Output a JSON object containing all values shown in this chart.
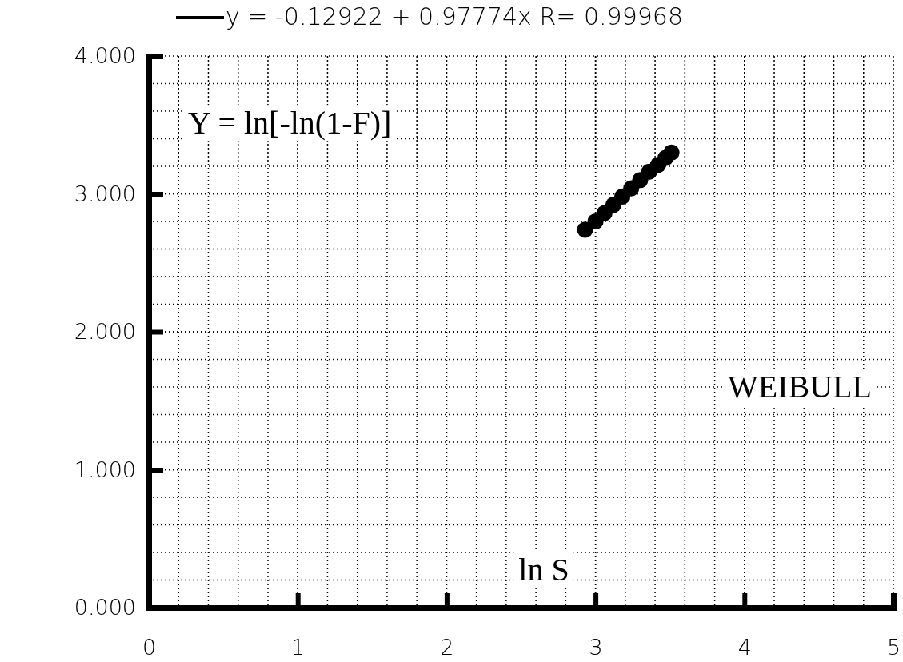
{
  "chart_data": {
    "type": "scatter",
    "xlabel": "ln S",
    "ylabel": "Y = ln[-ln(1-F)]",
    "annotations": [
      "WEIBULL"
    ],
    "xlim": [
      0,
      5
    ],
    "ylim": [
      0,
      4
    ],
    "xticks": [
      0,
      1,
      2,
      3,
      4,
      5
    ],
    "yticks": [
      {
        "value": 0,
        "label": "0.000"
      },
      {
        "value": 1,
        "label": "1.000"
      },
      {
        "value": 2,
        "label": "2.000"
      },
      {
        "value": 3,
        "label": "3.000"
      },
      {
        "value": 4,
        "label": "4.000"
      }
    ],
    "grid": true,
    "legend": "top",
    "marker": "circle",
    "series": [
      {
        "color": "#000000",
        "x": [
          2.93,
          3.0,
          3.06,
          3.12,
          3.18,
          3.24,
          3.3,
          3.36,
          3.42,
          3.47,
          3.51
        ],
        "values": [
          2.74,
          2.8,
          2.86,
          2.92,
          2.98,
          3.04,
          3.1,
          3.16,
          3.21,
          3.26,
          3.3
        ]
      },
      {
        "type": "line",
        "name": "y = -0.12922 + 0.97774x R= 0.99968",
        "color": "#000000",
        "line_style": "solid"
      }
    ]
  }
}
